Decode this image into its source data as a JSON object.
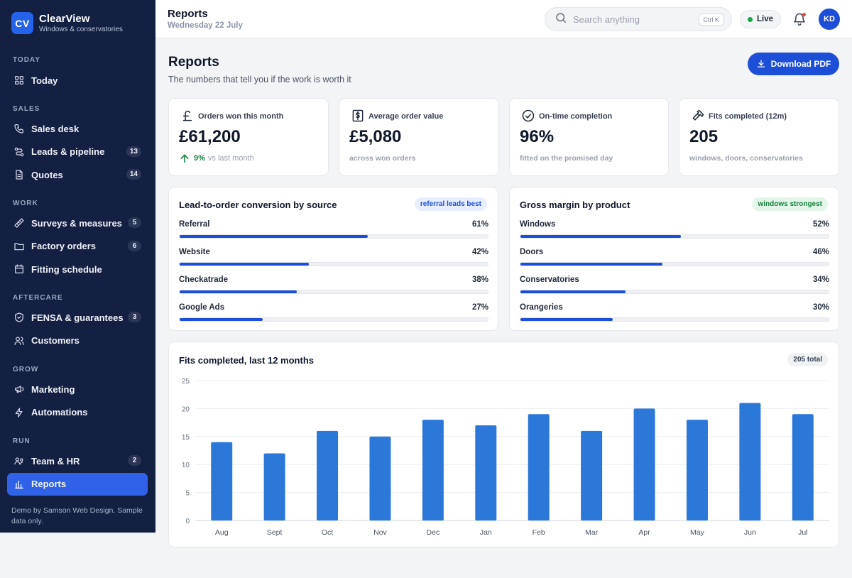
{
  "brand": {
    "logo": "CV",
    "name": "ClearView",
    "sub": "Windows & conservatories"
  },
  "nav": {
    "sections": [
      {
        "label": "TODAY",
        "items": [
          {
            "label": "Today",
            "icon": "grid-icon",
            "badge": ""
          }
        ]
      },
      {
        "label": "SALES",
        "items": [
          {
            "label": "Sales desk",
            "icon": "phone-icon",
            "badge": ""
          },
          {
            "label": "Leads & pipeline",
            "icon": "pipeline-icon",
            "badge": "13"
          },
          {
            "label": "Quotes",
            "icon": "document-icon",
            "badge": "14"
          }
        ]
      },
      {
        "label": "WORK",
        "items": [
          {
            "label": "Surveys & measures",
            "icon": "ruler-icon",
            "badge": "5"
          },
          {
            "label": "Factory orders",
            "icon": "folder-icon",
            "badge": "6"
          },
          {
            "label": "Fitting schedule",
            "icon": "calendar-icon",
            "badge": ""
          }
        ]
      },
      {
        "label": "AFTERCARE",
        "items": [
          {
            "label": "FENSA & guarantees",
            "icon": "shield-icon",
            "badge": "3"
          },
          {
            "label": "Customers",
            "icon": "users-icon",
            "badge": ""
          }
        ]
      },
      {
        "label": "GROW",
        "items": [
          {
            "label": "Marketing",
            "icon": "megaphone-icon",
            "badge": ""
          },
          {
            "label": "Automations",
            "icon": "bolt-icon",
            "badge": ""
          }
        ]
      },
      {
        "label": "RUN",
        "items": [
          {
            "label": "Team & HR",
            "icon": "team-icon",
            "badge": "2"
          },
          {
            "label": "Reports",
            "icon": "bar-chart-icon",
            "badge": "",
            "active": true
          }
        ]
      }
    ],
    "demo_note": "Demo by Samson Web Design. Sample data only."
  },
  "header": {
    "title": "Reports",
    "date": "Wednesday 22 July",
    "search_placeholder": "Search anything",
    "shortcut": "Ctrl K",
    "live": "Live",
    "avatar": "KD"
  },
  "page": {
    "title": "Reports",
    "subtitle": "The numbers that tell you if the work is worth it",
    "download_label": "Download PDF"
  },
  "kpis": [
    {
      "label": "Orders won this month",
      "value": "£61,200",
      "trend_pct": "9%",
      "trend_text": "vs last month",
      "foot": "",
      "icon": "pound-icon"
    },
    {
      "label": "Average order value",
      "value": "£5,080",
      "foot": "across won orders",
      "icon": "receipt-icon"
    },
    {
      "label": "On-time completion",
      "value": "96%",
      "foot": "fitted on the promised day",
      "icon": "check-circle-icon"
    },
    {
      "label": "Fits completed (12m)",
      "value": "205",
      "foot": "windows, doors, conservatories",
      "icon": "hammer-icon"
    }
  ],
  "conversion": {
    "title": "Lead-to-order conversion by source",
    "pill": "referral leads best",
    "rows": [
      {
        "label": "Referral",
        "value": "61%",
        "pct": 61
      },
      {
        "label": "Website",
        "value": "42%",
        "pct": 42
      },
      {
        "label": "Checkatrade",
        "value": "38%",
        "pct": 38
      },
      {
        "label": "Google Ads",
        "value": "27%",
        "pct": 27
      }
    ]
  },
  "margin": {
    "title": "Gross margin by product",
    "pill": "windows strongest",
    "rows": [
      {
        "label": "Windows",
        "value": "52%",
        "pct": 52
      },
      {
        "label": "Doors",
        "value": "46%",
        "pct": 46
      },
      {
        "label": "Conservatories",
        "value": "34%",
        "pct": 34
      },
      {
        "label": "Orangeries",
        "value": "30%",
        "pct": 30
      }
    ]
  },
  "fits_chart": {
    "title": "Fits completed, last 12 months",
    "pill": "205 total"
  },
  "chart_data": {
    "type": "bar",
    "categories": [
      "Aug",
      "Sept",
      "Oct",
      "Nov",
      "Dec",
      "Jan",
      "Feb",
      "Mar",
      "Apr",
      "May",
      "Jun",
      "Jul"
    ],
    "values": [
      14,
      12,
      16,
      15,
      18,
      17,
      19,
      16,
      20,
      18,
      21,
      19
    ],
    "ylim": [
      0,
      25
    ],
    "yticks": [
      0,
      5,
      10,
      15,
      20,
      25
    ],
    "grid": true,
    "color": "#2b78d8"
  },
  "colors": {
    "sidebar": "#142042",
    "accent": "#1d4ed8",
    "positive": "#15803d"
  }
}
